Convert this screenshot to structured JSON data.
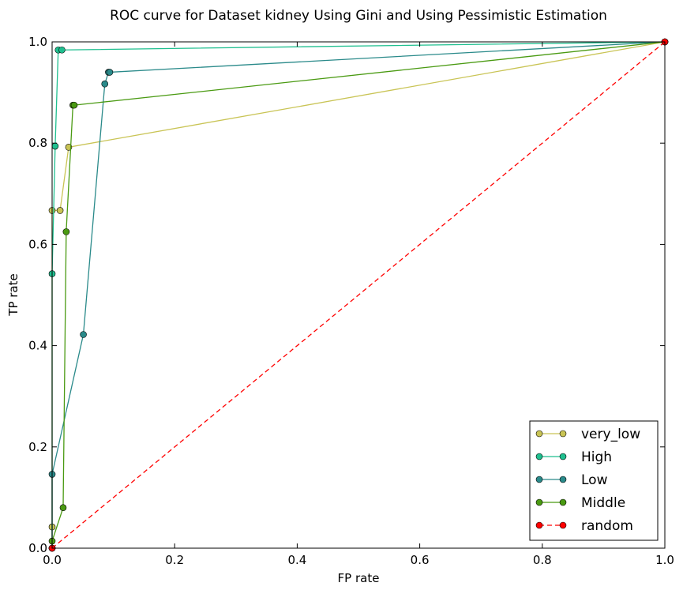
{
  "chart_data": {
    "type": "line",
    "title": "ROC curve for Dataset kidney Using Gini and Using Pessimistic Estimation",
    "xlabel": "FP rate",
    "ylabel": "TP rate",
    "xlim": [
      0,
      1
    ],
    "ylim": [
      0,
      1
    ],
    "x_ticks": [
      "0.0",
      "0.2",
      "0.4",
      "0.6",
      "0.8",
      "1.0"
    ],
    "y_ticks": [
      "0.0",
      "0.2",
      "0.4",
      "0.6",
      "0.8",
      "1.0"
    ],
    "grid": false,
    "legend_position": "lower-right",
    "series": [
      {
        "name": "very_low",
        "color": "#c9c455",
        "dashed": false,
        "points": [
          [
            0.0,
            0.0
          ],
          [
            0.0,
            0.042
          ],
          [
            0.0,
            0.667
          ],
          [
            0.013,
            0.667
          ],
          [
            0.027,
            0.792
          ],
          [
            1.0,
            1.0
          ]
        ]
      },
      {
        "name": "High",
        "color": "#1fbf8f",
        "dashed": false,
        "points": [
          [
            0.0,
            0.0
          ],
          [
            0.0,
            0.542
          ],
          [
            0.005,
            0.794
          ],
          [
            0.01,
            0.984
          ],
          [
            0.016,
            0.984
          ],
          [
            1.0,
            1.0
          ]
        ]
      },
      {
        "name": "Low",
        "color": "#2a8a8a",
        "dashed": false,
        "points": [
          [
            0.0,
            0.0
          ],
          [
            0.0,
            0.146
          ],
          [
            0.051,
            0.422
          ],
          [
            0.086,
            0.917
          ],
          [
            0.092,
            0.94
          ],
          [
            0.094,
            0.94
          ],
          [
            1.0,
            1.0
          ]
        ]
      },
      {
        "name": "Middle",
        "color": "#4a9a12",
        "dashed": false,
        "points": [
          [
            0.0,
            0.0
          ],
          [
            0.0,
            0.014
          ],
          [
            0.018,
            0.08
          ],
          [
            0.023,
            0.625
          ],
          [
            0.034,
            0.875
          ],
          [
            0.036,
            0.875
          ],
          [
            1.0,
            1.0
          ]
        ]
      },
      {
        "name": "random",
        "color": "#ff0000",
        "dashed": true,
        "points": [
          [
            0.0,
            0.0
          ],
          [
            1.0,
            1.0
          ]
        ]
      }
    ]
  }
}
